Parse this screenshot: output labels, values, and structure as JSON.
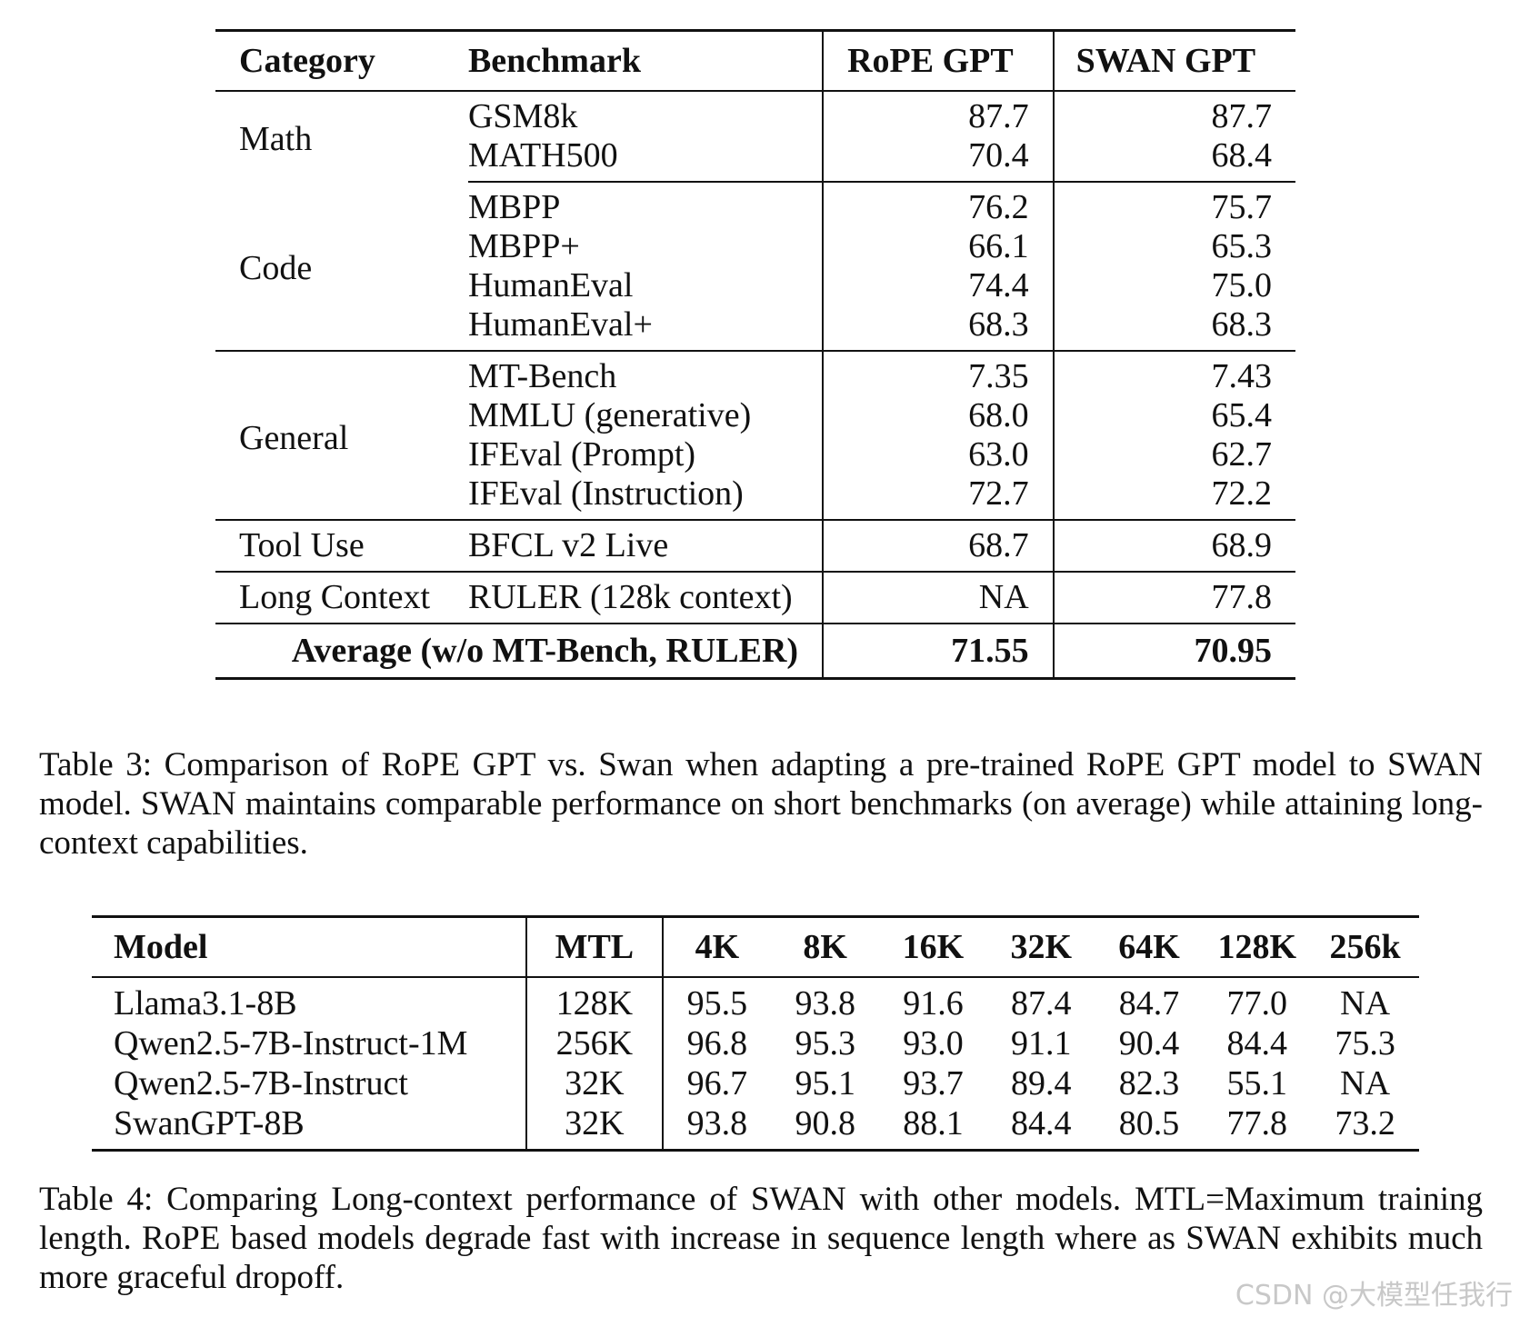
{
  "table3": {
    "headers": {
      "category": "Category",
      "benchmark": "Benchmark",
      "rope": "RoPE GPT",
      "swan": "SWAN GPT"
    },
    "groups": [
      {
        "category": "Math",
        "rows": [
          {
            "benchmark": "GSM8k",
            "rope": "87.7",
            "swan": "87.7"
          },
          {
            "benchmark": "MATH500",
            "rope": "70.4",
            "swan": "68.4"
          }
        ]
      },
      {
        "category": "Code",
        "rows": [
          {
            "benchmark": "MBPP",
            "rope": "76.2",
            "swan": "75.7"
          },
          {
            "benchmark": "MBPP+",
            "rope": "66.1",
            "swan": "65.3"
          },
          {
            "benchmark": "HumanEval",
            "rope": "74.4",
            "swan": "75.0"
          },
          {
            "benchmark": "HumanEval+",
            "rope": "68.3",
            "swan": "68.3"
          }
        ]
      },
      {
        "category": "General",
        "rows": [
          {
            "benchmark": "MT-Bench",
            "rope": "7.35",
            "swan": "7.43"
          },
          {
            "benchmark": "MMLU (generative)",
            "rope": "68.0",
            "swan": "65.4"
          },
          {
            "benchmark": "IFEval (Prompt)",
            "rope": "63.0",
            "swan": "62.7"
          },
          {
            "benchmark": "IFEval (Instruction)",
            "rope": "72.7",
            "swan": "72.2"
          }
        ]
      },
      {
        "category": "Tool Use",
        "rows": [
          {
            "benchmark": "BFCL v2 Live",
            "rope": "68.7",
            "swan": "68.9"
          }
        ]
      },
      {
        "category": "Long Context",
        "rows": [
          {
            "benchmark": "RULER (128k context)",
            "rope": "NA",
            "swan": "77.8"
          }
        ]
      }
    ],
    "average": {
      "label": "Average (w/o MT-Bench, RULER)",
      "rope": "71.55",
      "swan": "70.95"
    },
    "caption": {
      "label": "Table 3:",
      "text": "Comparison of RoPE GPT vs. Swan when adapting a pre-trained RoPE GPT model to SWAN model. SWAN maintains comparable performance on short benchmarks (on average) while attaining long-context capabilities."
    }
  },
  "table4": {
    "headers": [
      "Model",
      "MTL",
      "4K",
      "8K",
      "16K",
      "32K",
      "64K",
      "128K",
      "256k"
    ],
    "rows": [
      [
        "Llama3.1-8B",
        "128K",
        "95.5",
        "93.8",
        "91.6",
        "87.4",
        "84.7",
        "77.0",
        "NA"
      ],
      [
        "Qwen2.5-7B-Instruct-1M",
        "256K",
        "96.8",
        "95.3",
        "93.0",
        "91.1",
        "90.4",
        "84.4",
        "75.3"
      ],
      [
        "Qwen2.5-7B-Instruct",
        "32K",
        "96.7",
        "95.1",
        "93.7",
        "89.4",
        "82.3",
        "55.1",
        "NA"
      ],
      [
        "SwanGPT-8B",
        "32K",
        "93.8",
        "90.8",
        "88.1",
        "84.4",
        "80.5",
        "77.8",
        "73.2"
      ]
    ],
    "caption": {
      "label": "Table 4:",
      "text": "Comparing Long-context performance of SWAN with other models. MTL=Maximum training length. RoPE based models degrade fast with increase in sequence length where as SWAN exhibits much more graceful dropoff."
    }
  },
  "watermark": "CSDN @大模型任我行"
}
